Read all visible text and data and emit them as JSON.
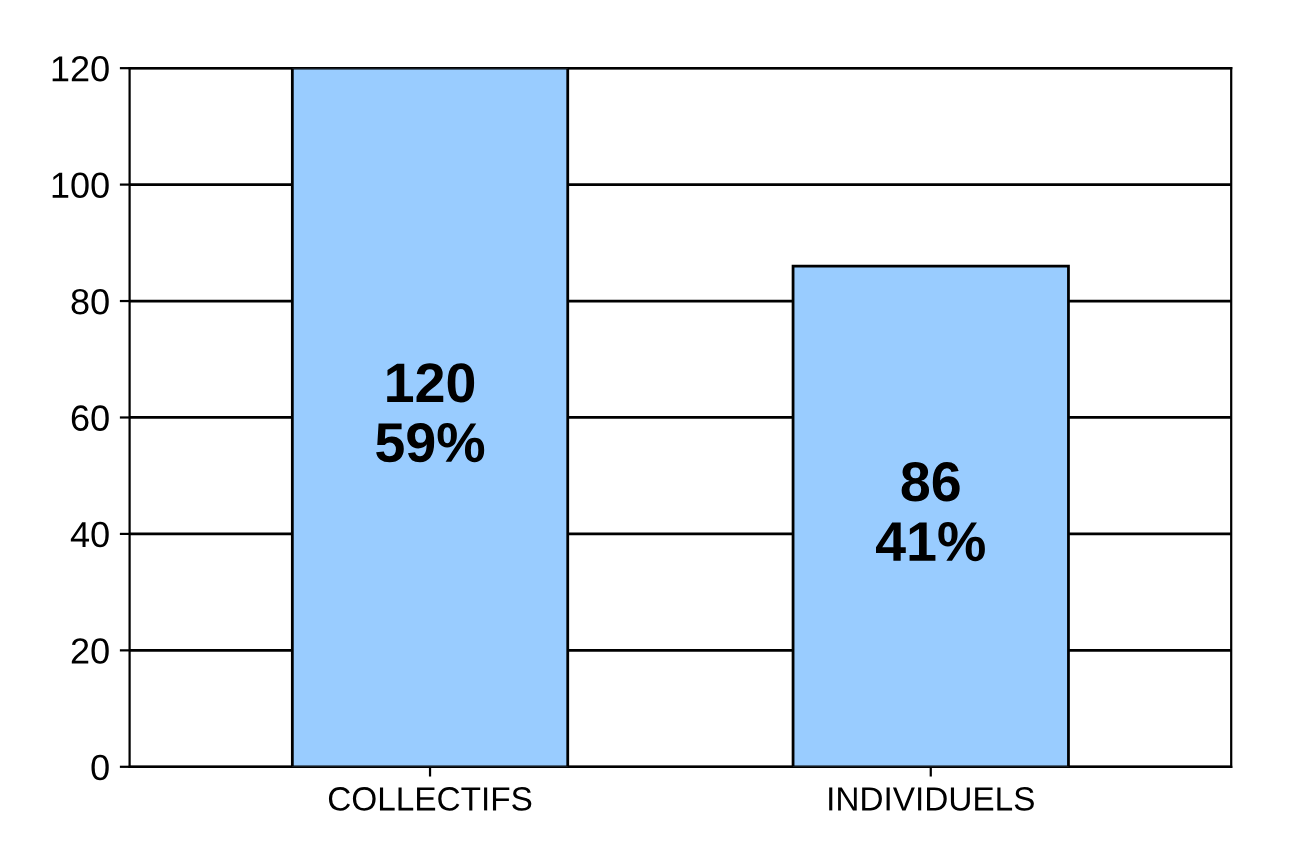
{
  "chart_data": {
    "type": "bar",
    "categories": [
      "COLLECTIFS",
      "INDIVIDUELS"
    ],
    "series": [
      {
        "color": "#99ccff",
        "values": [
          120,
          86
        ],
        "value_labels": [
          "120\n59%",
          "86\n41%"
        ]
      }
    ],
    "ylim": [
      0,
      120
    ],
    "yticks": [
      0,
      20,
      40,
      60,
      80,
      100,
      120
    ],
    "grid": "y",
    "legend": false
  }
}
